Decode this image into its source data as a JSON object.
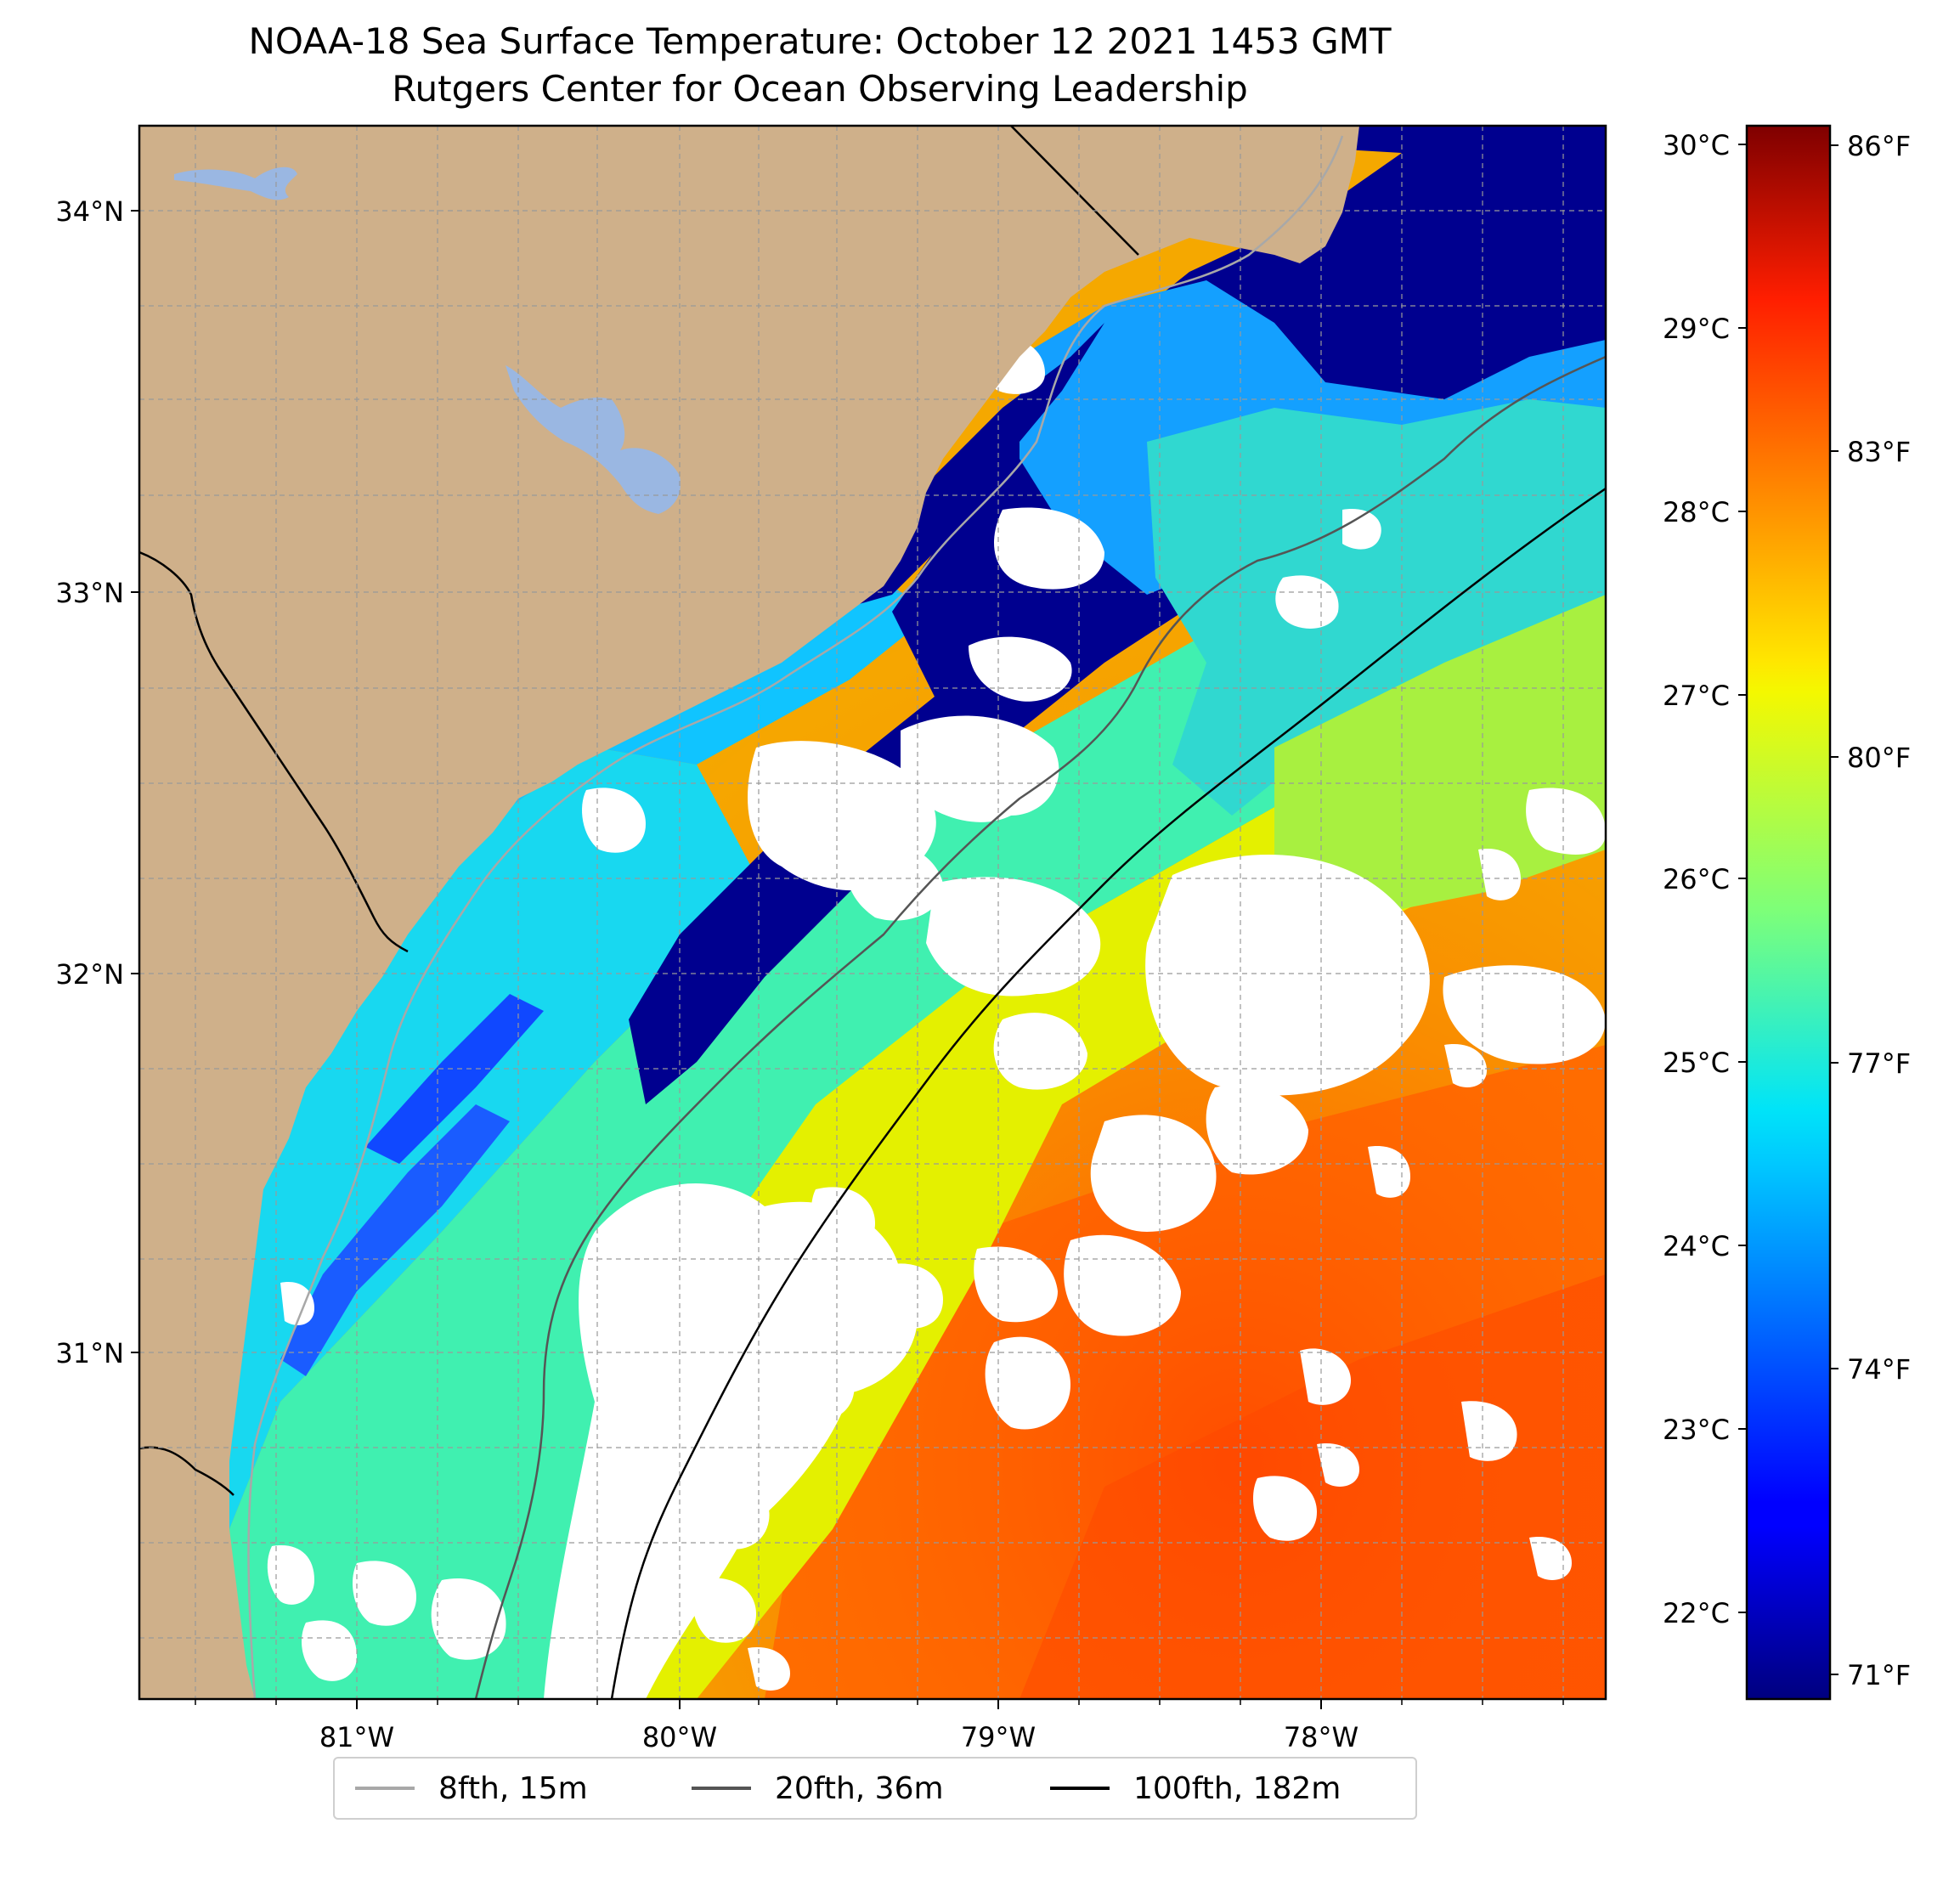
{
  "title": {
    "line1": "NOAA-18 Sea Surface Temperature: October 12 2021 1453 GMT",
    "line2": "Rutgers Center for Ocean Observing Leadership"
  },
  "map": {
    "lat_range": [
      30.07,
      34.22
    ],
    "lon_range": [
      -81.68,
      -77.1
    ],
    "lat_ticks": [
      {
        "value": 34,
        "label": "34°N"
      },
      {
        "value": 33,
        "label": "33°N"
      },
      {
        "value": 32,
        "label": "32°N"
      },
      {
        "value": 31,
        "label": "31°N"
      }
    ],
    "lon_ticks": [
      {
        "value": -81,
        "label": "81°W"
      },
      {
        "value": -80,
        "label": "80°W"
      },
      {
        "value": -79,
        "label": "79°W"
      },
      {
        "value": -78,
        "label": "78°W"
      }
    ],
    "gridlines": true,
    "colors": {
      "land": "#cfb08a",
      "lakes": "#9ab7e2",
      "cloud": "#ffffff",
      "isobath_8": "#a8a8a8",
      "isobath_20": "#555555",
      "isobath_100": "#000000",
      "coast": "#000000"
    }
  },
  "colorbar": {
    "colormap": "jet",
    "celsius_ticks": [
      "30°C",
      "29°C",
      "28°C",
      "27°C",
      "26°C",
      "25°C",
      "24°C",
      "23°C",
      "22°C"
    ],
    "fahrenheit_ticks": [
      "86°F",
      "83°F",
      "80°F",
      "77°F",
      "74°F",
      "71°F"
    ]
  },
  "legend": {
    "items": [
      {
        "label": "8fth, 15m",
        "color": "#a8a8a8"
      },
      {
        "label": "20fth, 36m",
        "color": "#555555"
      },
      {
        "label": "100fth, 182m",
        "color": "#000000"
      }
    ],
    "placement": "bottom-center"
  }
}
